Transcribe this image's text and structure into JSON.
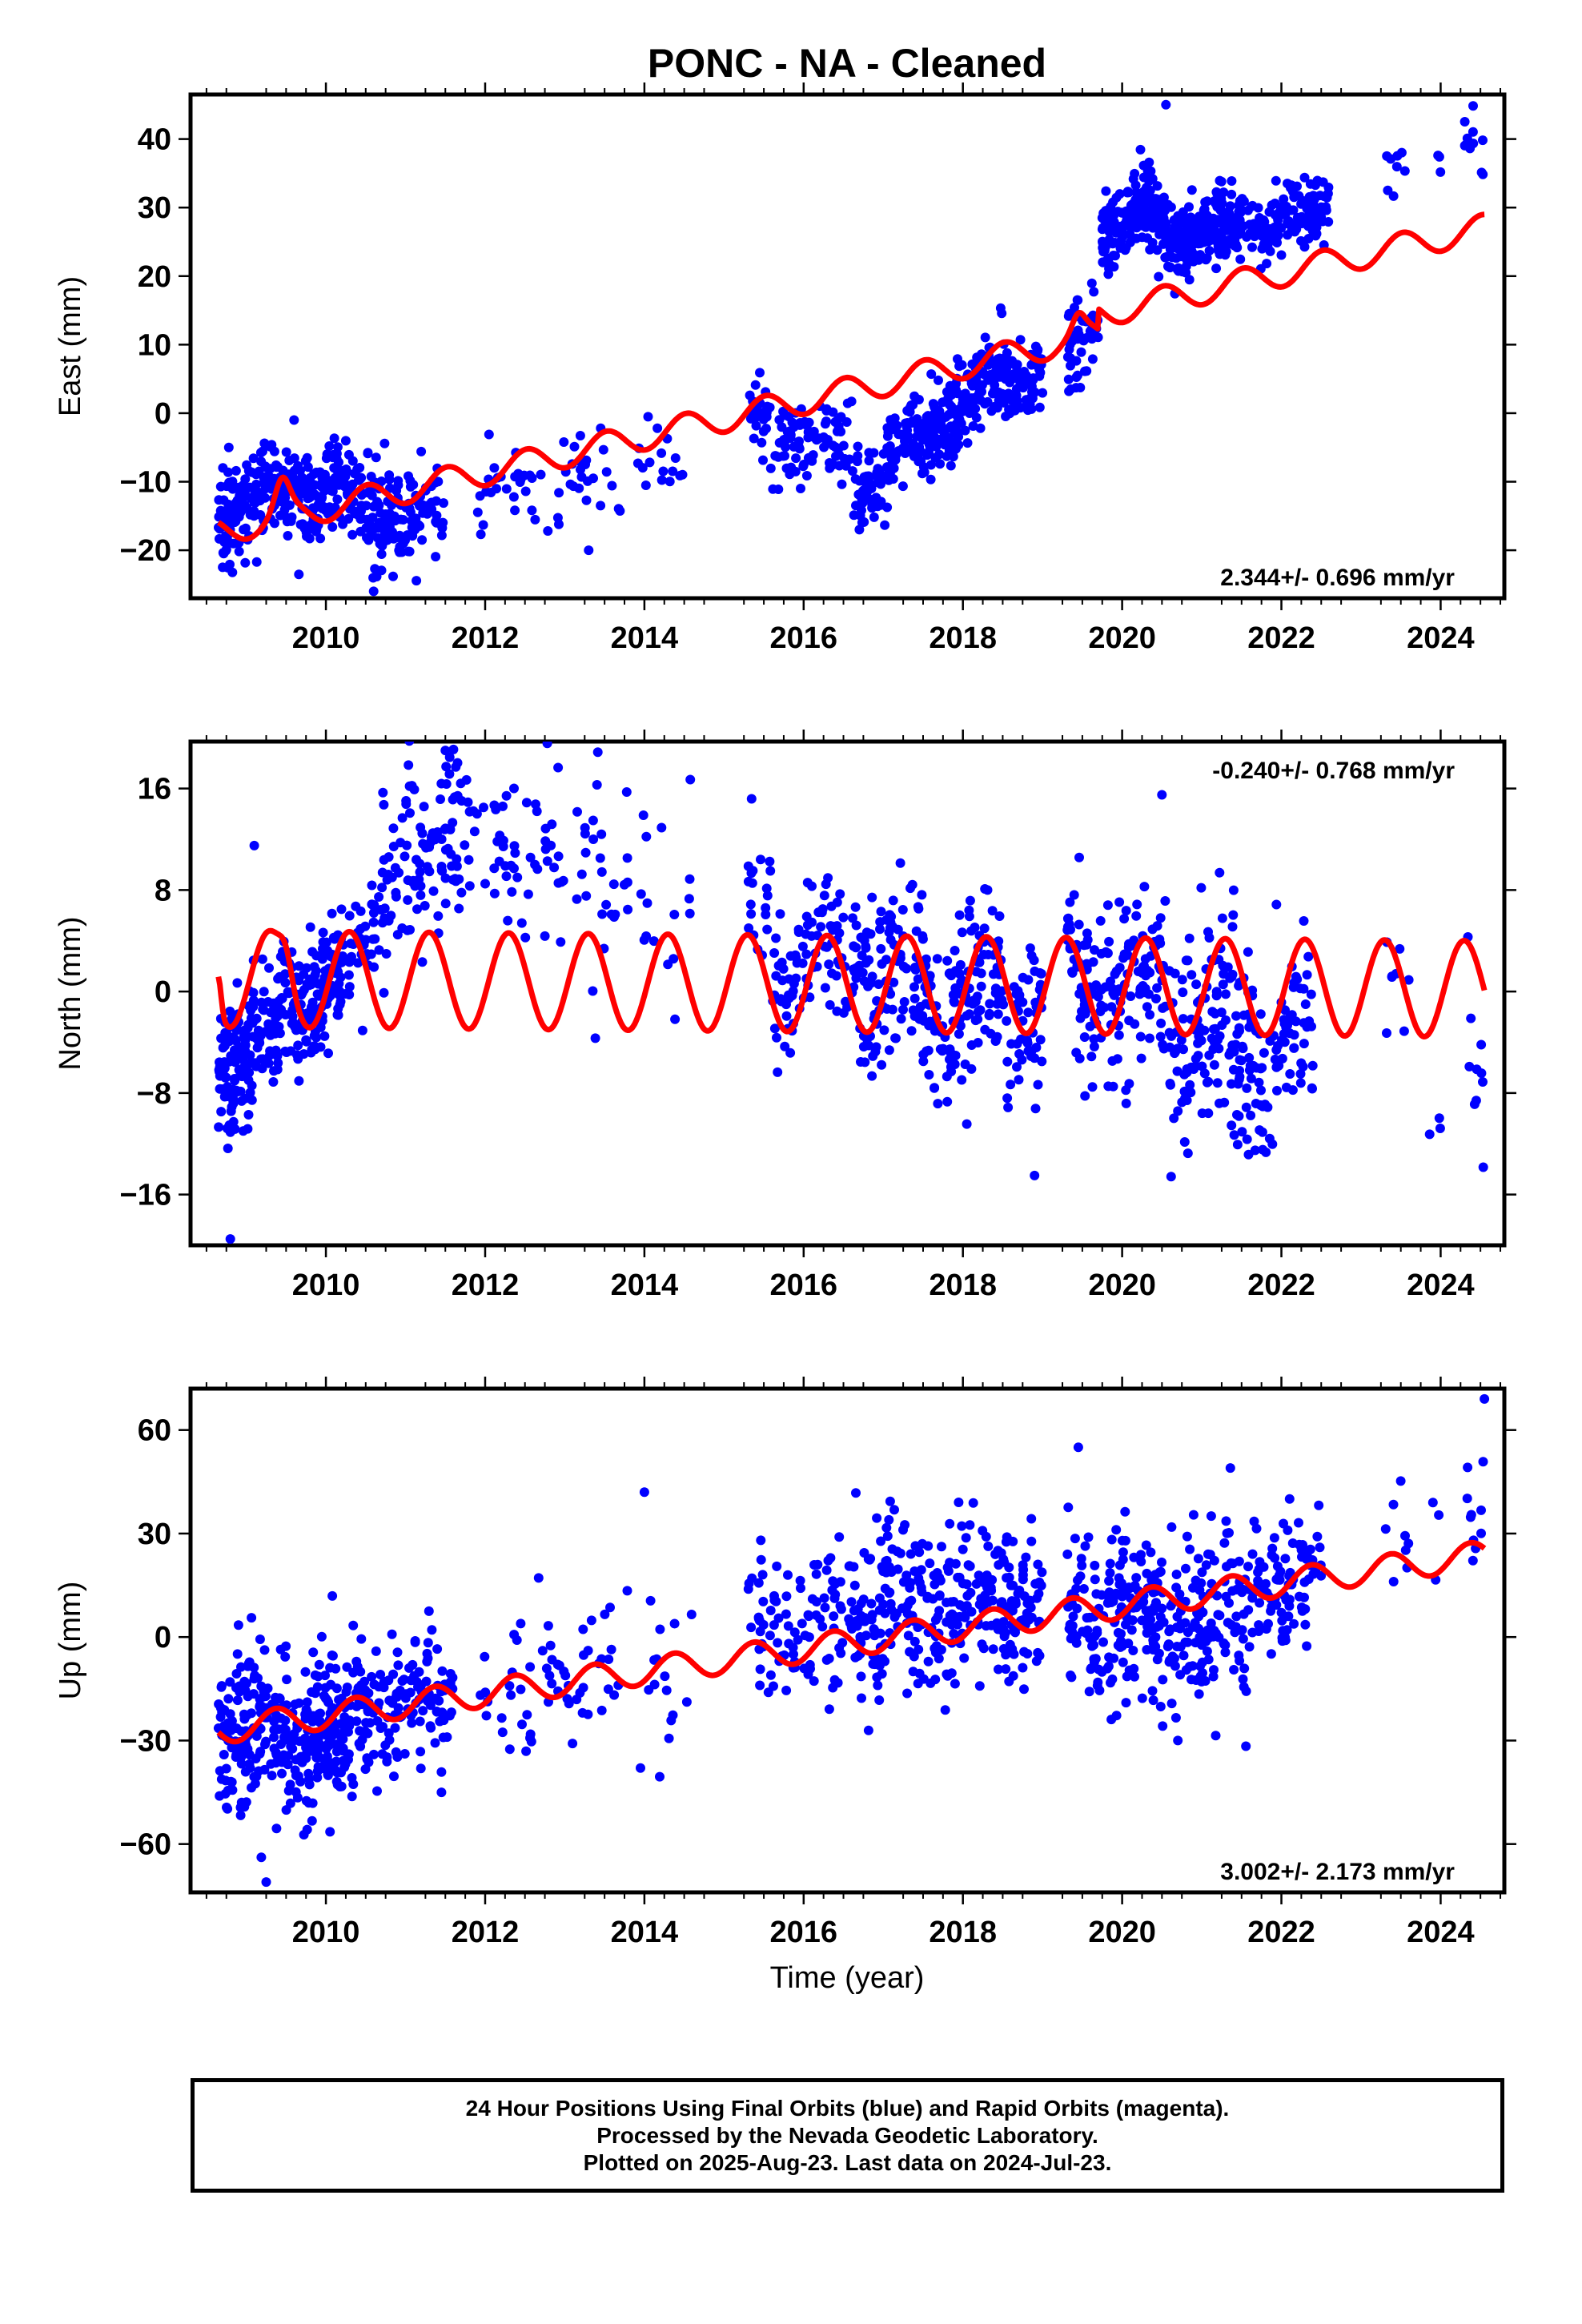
{
  "title": "PONC  - NA - Cleaned",
  "xlabel": "Time (year)",
  "footer": {
    "line1": "24 Hour Positions Using Final Orbits (blue) and Rapid Orbits (magenta).",
    "line2": "Processed by the Nevada Geodetic Laboratory.",
    "line3": "Plotted on 2025-Aug-23. Last data on 2024-Jul-23."
  },
  "colors": {
    "points": "#0000ff",
    "model": "#ff0000",
    "axis": "#000000"
  },
  "chart_data": [
    {
      "type": "scatter",
      "component": "east",
      "ylabel": "East (mm)",
      "xlim": [
        2008.3,
        2024.8
      ],
      "ylim": [
        -27,
        46.5
      ],
      "xticks": [
        2010,
        2012,
        2014,
        2016,
        2018,
        2020,
        2022,
        2024
      ],
      "xtick_labels": [
        "2010",
        "2012",
        "2014",
        "2016",
        "2018",
        "2020",
        "2022",
        "2024"
      ],
      "yticks": [
        -20,
        -10,
        0,
        10,
        20,
        30,
        40
      ],
      "ytick_labels": [
        "−20",
        "−10",
        "0",
        "10",
        "20",
        "30",
        "40"
      ],
      "rate_text": "2.344+/- 0.696 mm/yr",
      "rate_position": "bottom-right",
      "series": [
        {
          "kind": "points",
          "segments": [
            {
              "x0": 2008.65,
              "x1": 2009.85,
              "y0": -14,
              "y1": -10,
              "sd": 3.2,
              "n": 220,
              "seas": 2.0
            },
            {
              "x0": 2009.85,
              "x1": 2010.45,
              "y0": -11,
              "y1": -13,
              "sd": 3.0,
              "n": 100,
              "seas": 2.0
            },
            {
              "x0": 2010.5,
              "x1": 2011.2,
              "y0": -14,
              "y1": -15,
              "sd": 4.0,
              "n": 110,
              "seas": 2.0
            },
            {
              "x0": 2011.2,
              "x1": 2011.5,
              "y0": -14,
              "y1": -14,
              "sd": 2.5,
              "n": 25,
              "seas": 0
            },
            {
              "x0": 2011.9,
              "x1": 2013.7,
              "y0": -11,
              "y1": -10,
              "sd": 3.0,
              "n": 55,
              "seas": 2.0
            },
            {
              "x0": 2013.9,
              "x1": 2014.6,
              "y0": -8,
              "y1": -9,
              "sd": 3.0,
              "n": 16,
              "seas": 0
            },
            {
              "x0": 2015.3,
              "x1": 2015.6,
              "y0": -1,
              "y1": -2,
              "sd": 3.5,
              "n": 25,
              "seas": 0
            },
            {
              "x0": 2015.6,
              "x1": 2016.7,
              "y0": -2,
              "y1": -7,
              "sd": 3.5,
              "n": 100,
              "seas": 2.0
            },
            {
              "x0": 2016.7,
              "x1": 2017.3,
              "y0": -10,
              "y1": -6,
              "sd": 3.0,
              "n": 80,
              "seas": 2.0
            },
            {
              "x0": 2017.3,
              "x1": 2018.3,
              "y0": -4,
              "y1": 3,
              "sd": 3.0,
              "n": 170,
              "seas": 2.0
            },
            {
              "x0": 2018.3,
              "x1": 2019.0,
              "y0": 5,
              "y1": 7,
              "sd": 3.0,
              "n": 100,
              "seas": 2.0
            },
            {
              "x0": 2019.3,
              "x1": 2019.7,
              "y0": 10,
              "y1": 12,
              "sd": 4.0,
              "n": 50,
              "seas": 0
            },
            {
              "x0": 2019.75,
              "x1": 2020.55,
              "y0": 27,
              "y1": 29,
              "sd": 3.0,
              "n": 180,
              "seas": 1.5
            },
            {
              "x0": 2020.55,
              "x1": 2021.5,
              "y0": 26,
              "y1": 27,
              "sd": 2.7,
              "n": 200,
              "seas": 1.5
            },
            {
              "x0": 2021.5,
              "x1": 2022.5,
              "y0": 28,
              "y1": 29,
              "sd": 2.5,
              "n": 130,
              "seas": 1.5
            },
            {
              "x0": 2022.5,
              "x1": 2022.6,
              "y0": 30,
              "y1": 30,
              "sd": 2.5,
              "n": 12,
              "seas": 0
            },
            {
              "x0": 2023.3,
              "x1": 2023.6,
              "y0": 34,
              "y1": 35,
              "sd": 2.5,
              "n": 8,
              "seas": 0
            },
            {
              "x0": 2023.85,
              "x1": 2024.0,
              "y0": 36,
              "y1": 36,
              "sd": 1.5,
              "n": 3,
              "seas": 0
            },
            {
              "x0": 2024.3,
              "x1": 2024.55,
              "y0": 39,
              "y1": 40,
              "sd": 3.0,
              "n": 12,
              "seas": 0
            }
          ],
          "extra": [
            [
              2020.55,
              45
            ],
            [
              2010.6,
              -26
            ],
            [
              2013.3,
              -20
            ],
            [
              2016.7,
              -17
            ],
            [
              2009.6,
              -1
            ]
          ]
        },
        {
          "kind": "model",
          "model": {
            "x0": 2008.65,
            "x1": 2024.55,
            "a": -17.3,
            "b": 2.6,
            "amp": 2.0,
            "phase": 4.6,
            "steps": [
              [
                2019.7,
                3.0
              ]
            ],
            "bumps": [
              [
                2009.45,
                4.0,
                0.12
              ],
              [
                2019.45,
                2.0,
                0.1
              ]
            ]
          }
        }
      ]
    },
    {
      "type": "scatter",
      "component": "north",
      "ylabel": "North (mm)",
      "xlim": [
        2008.3,
        2024.8
      ],
      "ylim": [
        -20,
        19.7
      ],
      "xticks": [
        2010,
        2012,
        2014,
        2016,
        2018,
        2020,
        2022,
        2024
      ],
      "xtick_labels": [
        "2010",
        "2012",
        "2014",
        "2016",
        "2018",
        "2020",
        "2022",
        "2024"
      ],
      "yticks": [
        -16,
        -8,
        0,
        8,
        16
      ],
      "ytick_labels": [
        "−16",
        "−8",
        "0",
        "8",
        "16"
      ],
      "rate_text": "-0.240+/- 0.768 mm/yr",
      "rate_position": "top-right",
      "series": [
        {
          "kind": "points",
          "segments": [
            {
              "x0": 2008.65,
              "x1": 2009.4,
              "y0": -5,
              "y1": -3,
              "sd": 2.5,
              "n": 160,
              "seas": 1.0
            },
            {
              "x0": 2009.4,
              "x1": 2010.2,
              "y0": -1,
              "y1": 1,
              "sd": 2.5,
              "n": 160,
              "seas": 1.0
            },
            {
              "x0": 2010.2,
              "x1": 2010.7,
              "y0": 2,
              "y1": 6,
              "sd": 2.5,
              "n": 40,
              "seas": 0
            },
            {
              "x0": 2010.7,
              "x1": 2011.8,
              "y0": 9,
              "y1": 13,
              "sd": 3.5,
              "n": 110,
              "seas": 0
            },
            {
              "x0": 2011.8,
              "x1": 2013.8,
              "y0": 11,
              "y1": 10,
              "sd": 3.5,
              "n": 80,
              "seas": 0
            },
            {
              "x0": 2013.9,
              "x1": 2014.6,
              "y0": 6,
              "y1": 7,
              "sd": 4.0,
              "n": 16,
              "seas": 0
            },
            {
              "x0": 2015.3,
              "x1": 2015.6,
              "y0": 7,
              "y1": 7,
              "sd": 3.5,
              "n": 20,
              "seas": 0
            },
            {
              "x0": 2015.6,
              "x1": 2016.7,
              "y0": 3,
              "y1": 3,
              "sd": 3.0,
              "n": 100,
              "seas": 2.5
            },
            {
              "x0": 2016.7,
              "x1": 2018.0,
              "y0": 1,
              "y1": 0,
              "sd": 3.5,
              "n": 170,
              "seas": 2.5
            },
            {
              "x0": 2018.0,
              "x1": 2019.0,
              "y0": -1,
              "y1": -1,
              "sd": 3.5,
              "n": 120,
              "seas": 2.5
            },
            {
              "x0": 2019.3,
              "x1": 2020.6,
              "y0": 1,
              "y1": 0,
              "sd": 3.5,
              "n": 160,
              "seas": 2.5
            },
            {
              "x0": 2020.6,
              "x1": 2021.6,
              "y0": -3,
              "y1": -4,
              "sd": 4.0,
              "n": 140,
              "seas": 2.5
            },
            {
              "x0": 2021.6,
              "x1": 2022.4,
              "y0": -4,
              "y1": -3,
              "sd": 4.0,
              "n": 90,
              "seas": 2.5
            },
            {
              "x0": 2023.3,
              "x1": 2023.6,
              "y0": 0,
              "y1": 1,
              "sd": 3.0,
              "n": 8,
              "seas": 0
            },
            {
              "x0": 2023.85,
              "x1": 2024.0,
              "y0": -11,
              "y1": -11,
              "sd": 1.5,
              "n": 3,
              "seas": 0
            },
            {
              "x0": 2024.3,
              "x1": 2024.55,
              "y0": -6,
              "y1": -7,
              "sd": 4.0,
              "n": 10,
              "seas": 0
            }
          ],
          "extra": [
            [
              2008.8,
              -19.5
            ],
            [
              2020.5,
              15.5
            ],
            [
              2011.5,
              19
            ],
            [
              2018.9,
              -14.5
            ],
            [
              2009.1,
              11.5
            ]
          ]
        },
        {
          "kind": "model",
          "model": {
            "x0": 2008.65,
            "x1": 2024.55,
            "a": 1.0,
            "b": -0.05,
            "amp": 3.8,
            "phase": 6.0,
            "steps": [],
            "bumps": [
              [
                2008.65,
                2.5,
                0.05
              ],
              [
                2009.5,
                1.5,
                0.1
              ]
            ]
          }
        }
      ]
    },
    {
      "type": "scatter",
      "component": "up",
      "ylabel": "Up (mm)",
      "xlim": [
        2008.3,
        2024.8
      ],
      "ylim": [
        -74,
        72
      ],
      "xticks": [
        2010,
        2012,
        2014,
        2016,
        2018,
        2020,
        2022,
        2024
      ],
      "xtick_labels": [
        "2010",
        "2012",
        "2014",
        "2016",
        "2018",
        "2020",
        "2022",
        "2024"
      ],
      "yticks": [
        -60,
        -30,
        0,
        30,
        60
      ],
      "ytick_labels": [
        "−60",
        "−30",
        "0",
        "30",
        "60"
      ],
      "rate_text": "3.002+/- 2.173 mm/yr",
      "rate_position": "bottom-right",
      "series": [
        {
          "kind": "points",
          "segments": [
            {
              "x0": 2008.65,
              "x1": 2010.3,
              "y0": -28,
              "y1": -28,
              "sd": 11.0,
              "n": 330,
              "seas": 4.0
            },
            {
              "x0": 2010.3,
              "x1": 2011.6,
              "y0": -22,
              "y1": -20,
              "sd": 11.0,
              "n": 150,
              "seas": 4.0
            },
            {
              "x0": 2011.9,
              "x1": 2013.8,
              "y0": -15,
              "y1": -8,
              "sd": 11.0,
              "n": 60,
              "seas": 0
            },
            {
              "x0": 2013.9,
              "x1": 2014.6,
              "y0": -5,
              "y1": -5,
              "sd": 13.0,
              "n": 16,
              "seas": 0
            },
            {
              "x0": 2015.3,
              "x1": 2016.7,
              "y0": 5,
              "y1": 7,
              "sd": 12.0,
              "n": 110,
              "seas": 4.0
            },
            {
              "x0": 2016.7,
              "x1": 2019.0,
              "y0": 8,
              "y1": 10,
              "sd": 12.0,
              "n": 300,
              "seas": 4.0
            },
            {
              "x0": 2019.3,
              "x1": 2021.6,
              "y0": 5,
              "y1": 5,
              "sd": 12.0,
              "n": 320,
              "seas": 4.0
            },
            {
              "x0": 2021.6,
              "x1": 2022.5,
              "y0": 15,
              "y1": 15,
              "sd": 12.0,
              "n": 90,
              "seas": 4.0
            },
            {
              "x0": 2023.3,
              "x1": 2023.6,
              "y0": 18,
              "y1": 25,
              "sd": 15.0,
              "n": 8,
              "seas": 0
            },
            {
              "x0": 2023.85,
              "x1": 2024.0,
              "y0": 30,
              "y1": 30,
              "sd": 8.0,
              "n": 3,
              "seas": 0
            },
            {
              "x0": 2024.3,
              "x1": 2024.55,
              "y0": 35,
              "y1": 35,
              "sd": 10.0,
              "n": 10,
              "seas": 0
            }
          ],
          "extra": [
            [
              2024.55,
              69
            ],
            [
              2019.45,
              55
            ],
            [
              2009.25,
              -71
            ],
            [
              2014.0,
              42
            ],
            [
              2020.7,
              -30
            ]
          ]
        },
        {
          "kind": "model",
          "model": {
            "x0": 2008.65,
            "x1": 2024.55,
            "a": -27.0,
            "b": 3.2,
            "amp": 4.0,
            "phase": 5.5,
            "steps": [],
            "bumps": []
          }
        }
      ]
    }
  ]
}
